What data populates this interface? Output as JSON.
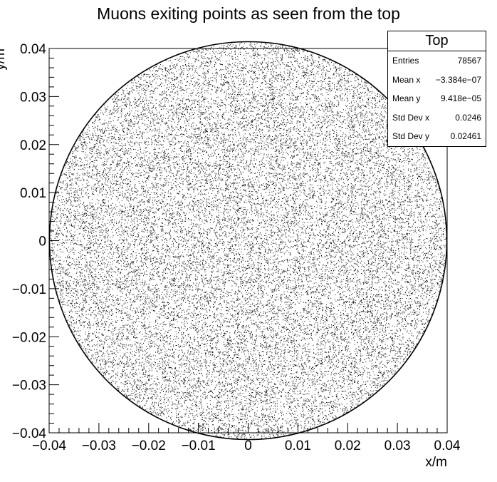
{
  "chart_data": {
    "type": "scatter",
    "title": "Muons exiting points as seen from the top",
    "xlabel": "x/m",
    "ylabel": "y/m",
    "xlim": [
      -0.04,
      0.04
    ],
    "ylim": [
      -0.04,
      0.04
    ],
    "x_ticks": [
      "−0.04",
      "−0.03",
      "−0.02",
      "−0.01",
      "0",
      "0.01",
      "0.02",
      "0.03",
      "0.04"
    ],
    "y_ticks": [
      "−0.04",
      "−0.03",
      "−0.02",
      "−0.01",
      "0",
      "0.01",
      "0.02",
      "0.03",
      "0.04"
    ],
    "x_tick_values": [
      -0.04,
      -0.03,
      -0.02,
      -0.01,
      0,
      0.01,
      0.02,
      0.03,
      0.04
    ],
    "y_tick_values": [
      -0.04,
      -0.03,
      -0.02,
      -0.01,
      0,
      0.01,
      0.02,
      0.03,
      0.04
    ],
    "distribution": "uniform disk",
    "disk_radius": 0.04,
    "point_color": "#000000",
    "grid": false,
    "stats_box": {
      "name": "Top",
      "position": "top-right",
      "rows": [
        {
          "label": "Entries",
          "value": "78567"
        },
        {
          "label": "Mean x",
          "value": "−3.384e−07"
        },
        {
          "label": "Mean y",
          "value": "9.418e−05"
        },
        {
          "label": "Std Dev x",
          "value": "0.0246"
        },
        {
          "label": "Std Dev y",
          "value": "0.02461"
        }
      ]
    }
  }
}
